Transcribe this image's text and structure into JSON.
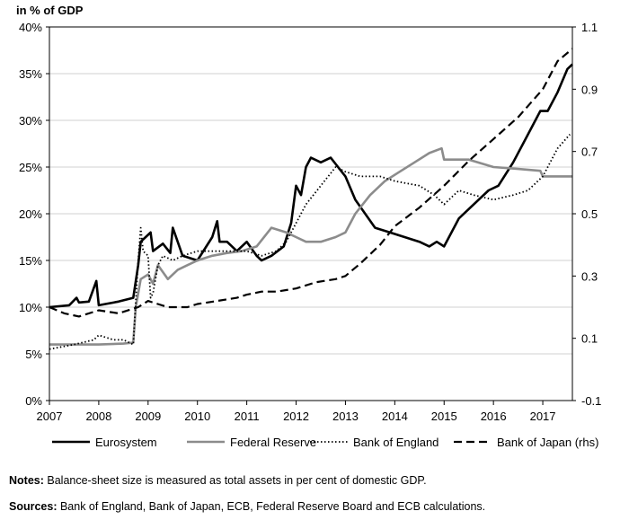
{
  "chart_data": {
    "type": "line",
    "unit_label": "in % of GDP",
    "x_ticks": [
      "2007",
      "2008",
      "2009",
      "2010",
      "2011",
      "2012",
      "2013",
      "2014",
      "2015",
      "2016",
      "2017"
    ],
    "xlim": [
      2007,
      2017.6
    ],
    "y_left": {
      "ylim": [
        0,
        40
      ],
      "ticks": [
        "0%",
        "5%",
        "10%",
        "15%",
        "20%",
        "25%",
        "30%",
        "35%",
        "40%"
      ]
    },
    "y_right": {
      "ylim": [
        -0.1,
        1.1
      ],
      "ticks": [
        "-0.1",
        "0.1",
        "0.3",
        "0.5",
        "0.7",
        "0.9",
        "1.1"
      ]
    },
    "series": [
      {
        "name": "Eurosystem",
        "axis": "left",
        "style": "solid",
        "color": "#000000",
        "width": 2.6,
        "x": [
          2007.0,
          2007.4,
          2007.55,
          2007.6,
          2007.8,
          2007.95,
          2008.0,
          2008.4,
          2008.7,
          2008.8,
          2008.85,
          2008.95,
          2009.05,
          2009.1,
          2009.3,
          2009.45,
          2009.5,
          2009.7,
          2010.0,
          2010.3,
          2010.4,
          2010.45,
          2010.6,
          2010.8,
          2011.0,
          2011.2,
          2011.3,
          2011.5,
          2011.75,
          2011.9,
          2012.0,
          2012.1,
          2012.2,
          2012.3,
          2012.5,
          2012.7,
          2012.85,
          2013.0,
          2013.2,
          2013.4,
          2013.6,
          2013.9,
          2014.2,
          2014.5,
          2014.7,
          2014.85,
          2015.0,
          2015.3,
          2015.6,
          2015.9,
          2016.1,
          2016.4,
          2016.7,
          2016.95,
          2017.1,
          2017.3,
          2017.5,
          2017.6
        ],
        "values": [
          10.0,
          10.2,
          11.0,
          10.5,
          10.6,
          12.8,
          10.2,
          10.6,
          11.0,
          14.5,
          17.0,
          17.5,
          18.0,
          16.0,
          16.8,
          15.8,
          18.5,
          15.5,
          15.0,
          17.5,
          19.2,
          17.0,
          17.0,
          16.0,
          17.0,
          15.5,
          15.0,
          15.5,
          16.5,
          19.0,
          23.0,
          22.0,
          25.0,
          26.0,
          25.5,
          26.0,
          25.0,
          24.0,
          21.5,
          20.0,
          18.5,
          18.0,
          17.5,
          17.0,
          16.5,
          17.0,
          16.5,
          19.5,
          21.0,
          22.5,
          23.0,
          25.5,
          28.5,
          31.0,
          31.0,
          33.0,
          35.5,
          36.0
        ]
      },
      {
        "name": "Federal Reserve",
        "axis": "left",
        "style": "solid",
        "color": "#8c8c8c",
        "width": 2.6,
        "x": [
          2007.0,
          2007.5,
          2008.0,
          2008.5,
          2008.7,
          2008.75,
          2008.85,
          2009.0,
          2009.1,
          2009.2,
          2009.4,
          2009.6,
          2009.8,
          2010.0,
          2010.3,
          2010.6,
          2010.9,
          2011.2,
          2011.5,
          2011.8,
          2012.0,
          2012.2,
          2012.5,
          2012.8,
          2013.0,
          2013.2,
          2013.5,
          2013.8,
          2014.1,
          2014.4,
          2014.7,
          2014.95,
          2015.0,
          2015.5,
          2016.0,
          2016.5,
          2016.95,
          2017.0,
          2017.6
        ],
        "values": [
          6.0,
          6.0,
          6.0,
          6.1,
          6.2,
          10.0,
          13.0,
          13.5,
          12.5,
          14.5,
          13.0,
          14.0,
          14.5,
          15.0,
          15.5,
          15.8,
          16.0,
          16.5,
          18.5,
          18.0,
          17.5,
          17.0,
          17.0,
          17.5,
          18.0,
          20.0,
          22.0,
          23.5,
          24.5,
          25.5,
          26.5,
          27.0,
          25.8,
          25.8,
          25.0,
          24.8,
          24.6,
          24.0,
          24.0
        ]
      },
      {
        "name": "Bank of England",
        "axis": "left",
        "style": "dotted",
        "color": "#000000",
        "width": 1.8,
        "x": [
          2007.0,
          2007.5,
          2007.9,
          2008.0,
          2008.3,
          2008.5,
          2008.7,
          2008.8,
          2008.85,
          2008.9,
          2009.0,
          2009.05,
          2009.1,
          2009.2,
          2009.3,
          2009.5,
          2009.7,
          2010.0,
          2010.5,
          2011.0,
          2011.3,
          2011.6,
          2011.8,
          2012.0,
          2012.2,
          2012.5,
          2012.8,
          2013.0,
          2013.3,
          2013.7,
          2014.0,
          2014.5,
          2014.8,
          2015.0,
          2015.3,
          2015.6,
          2016.0,
          2016.4,
          2016.7,
          2017.0,
          2017.3,
          2017.55
        ],
        "values": [
          5.5,
          6.0,
          6.5,
          7.0,
          6.5,
          6.5,
          6.0,
          15.0,
          18.5,
          16.0,
          15.5,
          11.0,
          11.5,
          14.5,
          15.5,
          15.0,
          15.5,
          16.0,
          16.0,
          16.0,
          15.5,
          16.0,
          17.0,
          19.0,
          21.0,
          23.0,
          25.0,
          24.5,
          24.0,
          24.0,
          23.5,
          23.0,
          22.0,
          21.0,
          22.5,
          22.0,
          21.5,
          22.0,
          22.5,
          24.0,
          27.0,
          28.5
        ]
      },
      {
        "name": "Bank of Japan (rhs)",
        "axis": "right",
        "style": "dashed",
        "color": "#000000",
        "width": 2.2,
        "x": [
          2007.0,
          2007.3,
          2007.6,
          2008.0,
          2008.4,
          2008.8,
          2009.0,
          2009.4,
          2009.8,
          2010.0,
          2010.4,
          2010.8,
          2011.0,
          2011.3,
          2011.6,
          2012.0,
          2012.4,
          2012.8,
          2013.0,
          2013.3,
          2013.7,
          2014.0,
          2014.5,
          2015.0,
          2015.5,
          2016.0,
          2016.5,
          2017.0,
          2017.3,
          2017.6
        ],
        "values": [
          0.2,
          0.18,
          0.17,
          0.19,
          0.18,
          0.2,
          0.22,
          0.2,
          0.2,
          0.21,
          0.22,
          0.23,
          0.24,
          0.25,
          0.25,
          0.26,
          0.28,
          0.29,
          0.3,
          0.34,
          0.4,
          0.46,
          0.52,
          0.59,
          0.67,
          0.74,
          0.81,
          0.9,
          0.99,
          1.03
        ]
      }
    ]
  },
  "notes": {
    "label": "Notes:",
    "text": " Balance-sheet size is measured as total assets in per cent of domestic GDP."
  },
  "sources": {
    "label": "Sources:",
    "text": " Bank of England, Bank of Japan, ECB, Federal Reserve Board and ECB calculations."
  }
}
